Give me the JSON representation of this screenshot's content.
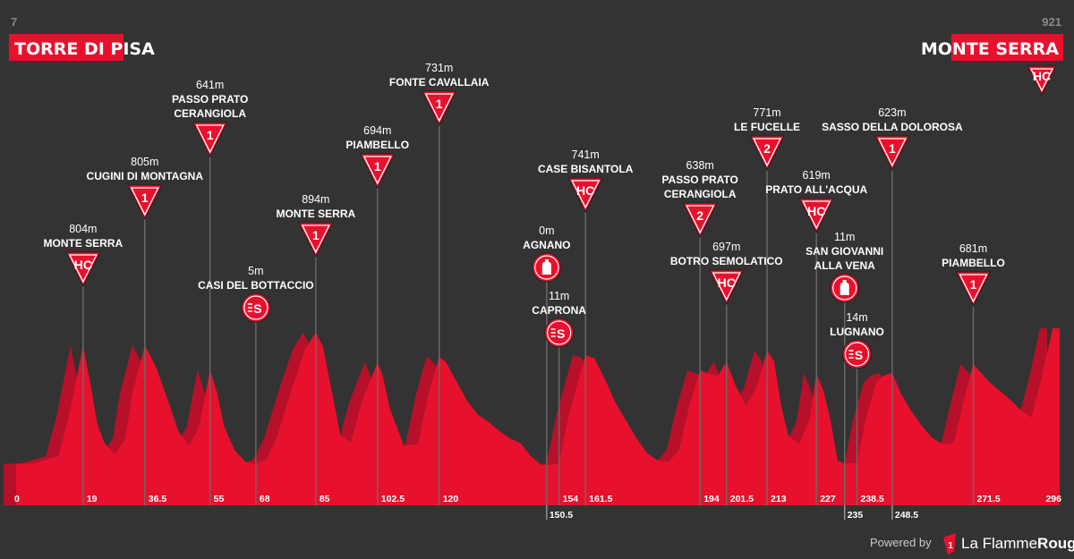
{
  "start": {
    "altitude": "7",
    "name": "TORRE DI PISA"
  },
  "finish": {
    "altitude": "921",
    "name": "MONTE SERRA",
    "category": "HC"
  },
  "footer": {
    "powered_by": "Powered by",
    "logo_mark": "1",
    "brand_prefix": "La ",
    "brand_main": "Flamme",
    "brand_suffix": "Rouge"
  },
  "colors": {
    "background": "#333333",
    "profile_front": "#e8112d",
    "profile_back": "#b8102a",
    "marker": "#e8112d",
    "stem": "#6b6b6b"
  },
  "chart_data": {
    "type": "area",
    "xlim": [
      0,
      296
    ],
    "ylim": [
      0,
      921
    ],
    "xlabel": "",
    "ylabel": "",
    "grid": false,
    "km_ticks": [
      {
        "label": "0",
        "km": 0
      },
      {
        "label": "19",
        "km": 19
      },
      {
        "label": "36.5",
        "km": 36.5
      },
      {
        "label": "55",
        "km": 55
      },
      {
        "label": "68",
        "km": 68
      },
      {
        "label": "85",
        "km": 85
      },
      {
        "label": "102.5",
        "km": 102.5
      },
      {
        "label": "120",
        "km": 120
      },
      {
        "label": "150.5",
        "km": 150.5,
        "row": "below"
      },
      {
        "label": "154",
        "km": 154
      },
      {
        "label": "161.5",
        "km": 161.5
      },
      {
        "label": "194",
        "km": 194
      },
      {
        "label": "201.5",
        "km": 201.5
      },
      {
        "label": "213",
        "km": 213
      },
      {
        "label": "227",
        "km": 227
      },
      {
        "label": "235",
        "km": 235,
        "row": "below"
      },
      {
        "label": "238.5",
        "km": 238.5
      },
      {
        "label": "248.5",
        "km": 248.5,
        "row": "below"
      },
      {
        "label": "271.5",
        "km": 271.5
      },
      {
        "label": "296",
        "km": 296
      }
    ],
    "waypoints": [
      {
        "km": 19,
        "name": [
          "MONTE SERRA"
        ],
        "altitude": "804m",
        "type": "climb",
        "category": "HC"
      },
      {
        "km": 36.5,
        "name": [
          "CUGINI DI MONTAGNA"
        ],
        "altitude": "805m",
        "type": "climb",
        "category": "1"
      },
      {
        "km": 55,
        "name": [
          "PASSO PRATO",
          "CERANGIOLA"
        ],
        "altitude": "641m",
        "type": "climb",
        "category": "1"
      },
      {
        "km": 68,
        "name": [
          "CASI DEL BOTTACCIO"
        ],
        "altitude": "5m",
        "type": "sprint"
      },
      {
        "km": 85,
        "name": [
          "MONTE SERRA"
        ],
        "altitude": "894m",
        "type": "climb",
        "category": "1"
      },
      {
        "km": 102.5,
        "name": [
          "PIAMBELLO"
        ],
        "altitude": "694m",
        "type": "climb",
        "category": "1"
      },
      {
        "km": 120,
        "name": [
          "FONTE CAVALLAIA"
        ],
        "altitude": "731m",
        "type": "climb",
        "category": "1"
      },
      {
        "km": 150.5,
        "name": [
          "AGNANO"
        ],
        "altitude": "0m",
        "type": "feed"
      },
      {
        "km": 154,
        "name": [
          "CAPRONA"
        ],
        "altitude": "11m",
        "type": "sprint"
      },
      {
        "km": 161.5,
        "name": [
          "CASE BISANTOLA"
        ],
        "altitude": "741m",
        "type": "climb",
        "category": "HC"
      },
      {
        "km": 194,
        "name": [
          "PASSO PRATO",
          "CERANGIOLA"
        ],
        "altitude": "638m",
        "type": "climb",
        "category": "2"
      },
      {
        "km": 201.5,
        "name": [
          "BOTRO SEMOLATICO"
        ],
        "altitude": "697m",
        "type": "climb",
        "category": "HC"
      },
      {
        "km": 213,
        "name": [
          "LE FUCELLE"
        ],
        "altitude": "771m",
        "type": "climb",
        "category": "2"
      },
      {
        "km": 227,
        "name": [
          "PRATO ALL'ACQUA"
        ],
        "altitude": "619m",
        "type": "climb",
        "category": "HC"
      },
      {
        "km": 235,
        "name": [
          "SAN GIOVANNI",
          "ALLA VENA"
        ],
        "altitude": "11m",
        "type": "feed"
      },
      {
        "km": 238.5,
        "name": [
          "LUGNANO"
        ],
        "altitude": "14m",
        "type": "sprint"
      },
      {
        "km": 248.5,
        "name": [
          "SASSO DELLA DOLOROSA"
        ],
        "altitude": "623m",
        "type": "climb",
        "category": "1"
      },
      {
        "km": 271.5,
        "name": [
          "PIAMBELLO"
        ],
        "altitude": "681m",
        "type": "climb",
        "category": "1"
      }
    ],
    "profile": {
      "x_km": [
        0,
        5,
        12,
        15,
        19,
        21,
        23,
        25,
        28,
        31,
        33,
        36.5,
        38,
        40,
        43,
        46,
        49,
        52,
        55,
        57,
        59,
        62,
        65,
        68,
        71,
        74,
        78,
        82,
        85,
        87,
        89,
        92,
        95,
        98,
        102.5,
        104,
        106,
        110,
        114,
        117,
        120,
        122,
        125,
        128,
        131,
        134,
        137,
        140,
        143,
        146,
        149,
        150.5,
        152,
        154,
        157,
        161.5,
        164,
        167,
        170,
        173,
        176,
        179,
        182,
        185,
        188,
        191,
        194,
        196,
        199,
        201.5,
        204,
        207,
        210,
        213,
        215,
        217,
        219,
        222,
        225,
        227,
        229,
        231,
        233,
        235,
        237,
        238.5,
        241,
        244,
        246,
        248.5,
        251,
        254,
        257,
        260,
        263,
        266,
        269,
        271.5,
        273,
        276,
        279,
        282,
        285,
        288,
        291,
        294,
        296
      ],
      "elevation_m": [
        7,
        12,
        60,
        330,
        804,
        560,
        280,
        150,
        70,
        180,
        480,
        805,
        740,
        640,
        440,
        230,
        130,
        260,
        641,
        490,
        260,
        100,
        22,
        5,
        40,
        190,
        500,
        780,
        894,
        800,
        560,
        200,
        150,
        420,
        694,
        600,
        380,
        130,
        140,
        480,
        731,
        690,
        560,
        430,
        340,
        290,
        230,
        180,
        150,
        60,
        0,
        0,
        5,
        11,
        360,
        741,
        720,
        580,
        420,
        300,
        180,
        80,
        30,
        20,
        100,
        400,
        638,
        620,
        600,
        697,
        540,
        400,
        520,
        771,
        700,
        400,
        200,
        140,
        300,
        619,
        500,
        300,
        30,
        11,
        12,
        14,
        310,
        560,
        600,
        623,
        480,
        360,
        260,
        180,
        140,
        150,
        450,
        681,
        640,
        560,
        500,
        440,
        370,
        320,
        600,
        921,
        921
      ]
    }
  }
}
